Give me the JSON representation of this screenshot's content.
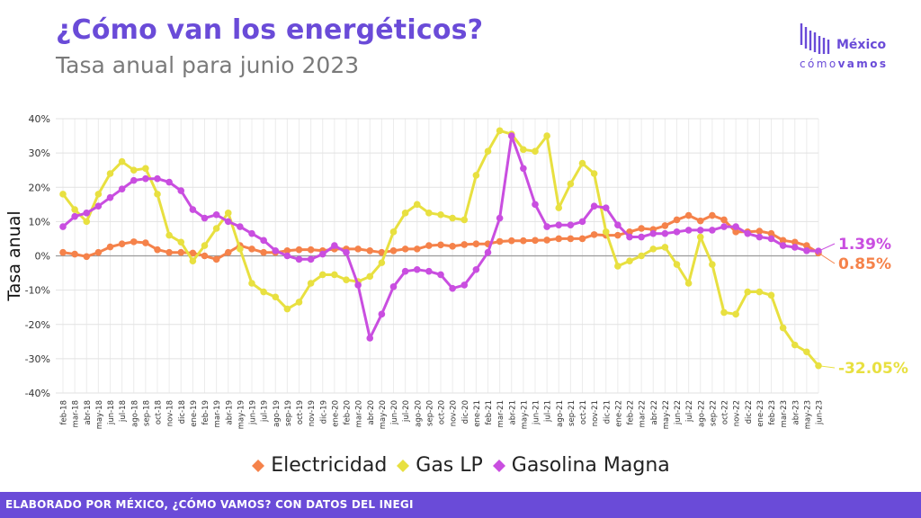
{
  "title": "¿Cómo van los energéticos?",
  "subtitle": "Tasa anual para junio 2023",
  "logo": {
    "line1": "México",
    "line2a": "cómo",
    "line2b": "vamos"
  },
  "footer": "ELABORADO POR MÉXICO, ¿CÓMO VAMOS? CON DATOS DEL INEGI",
  "colors": {
    "Electricidad": "#f5824a",
    "Gas LP": "#e8e040",
    "Gasolina Magna": "#c94ee0",
    "accent": "#6a4bd8"
  },
  "chart_data": {
    "type": "line",
    "ylabel": "Tasa anual",
    "ylim": [
      -40,
      40
    ],
    "yticks": [
      "40%",
      "30%",
      "20%",
      "10%",
      "0%",
      "-10%",
      "-20%",
      "-30%",
      "-40%"
    ],
    "grid": true,
    "legend_position": "bottom",
    "categories": [
      "feb-18",
      "mar-18",
      "abr-18",
      "may-18",
      "jun-18",
      "jul-18",
      "ago-18",
      "sep-18",
      "oct-18",
      "nov-18",
      "dic-18",
      "ene-19",
      "feb-19",
      "mar-19",
      "abr-19",
      "may-19",
      "jun-19",
      "jul-19",
      "ago-19",
      "sep-19",
      "oct-19",
      "nov-19",
      "dic-19",
      "ene-20",
      "feb-20",
      "mar-20",
      "abr-20",
      "may-20",
      "jun-20",
      "jul-20",
      "ago-20",
      "sep-20",
      "oct-20",
      "nov-20",
      "dic-20",
      "ene-21",
      "feb-21",
      "mar-21",
      "abr-21",
      "may-21",
      "jun-21",
      "jul-21",
      "ago-21",
      "sep-21",
      "oct-21",
      "nov-21",
      "dic-21",
      "ene-22",
      "feb-22",
      "mar-22",
      "abr-22",
      "may-22",
      "jun-22",
      "jul-22",
      "ago-22",
      "sep-22",
      "oct-22",
      "nov-22",
      "dic-22",
      "ene-23",
      "feb-23",
      "mar-23",
      "abr-23",
      "may-23",
      "jun-23"
    ],
    "series": [
      {
        "name": "Electricidad",
        "values": [
          1.0,
          0.5,
          -0.2,
          1.0,
          2.6,
          3.5,
          4.1,
          3.8,
          1.8,
          1.0,
          1.0,
          0.8,
          0,
          -1,
          1,
          3,
          2,
          1,
          1,
          1.5,
          1.8,
          1.8,
          1.5,
          2,
          2,
          2,
          1.5,
          1,
          1.5,
          2,
          2,
          3,
          3.2,
          2.8,
          3.3,
          3.5,
          3.5,
          4.2,
          4.4,
          4.4,
          4.5,
          4.6,
          5,
          5,
          5,
          6.2,
          6,
          6,
          7,
          8,
          7.7,
          8.8,
          10.5,
          11.8,
          10.2,
          11.8,
          10.5,
          7,
          7,
          7.2,
          6.5,
          4.5,
          4,
          3,
          0.85
        ]
      },
      {
        "name": "Gas LP",
        "values": [
          18,
          13.5,
          10,
          18,
          24,
          27.5,
          25,
          25.5,
          18,
          6,
          4,
          -1.5,
          3,
          8,
          12.5,
          2,
          -8,
          -10.5,
          -12,
          -15.5,
          -13.5,
          -8,
          -5.5,
          -5.5,
          -7,
          -7.5,
          -6,
          -2,
          7,
          12.5,
          15,
          12.5,
          12,
          11,
          10.5,
          23.5,
          30.5,
          36.5,
          35.5,
          31,
          30.5,
          35,
          14,
          21,
          27,
          24,
          7,
          -3,
          -1.5,
          0,
          2,
          2.5,
          -2.5,
          -8,
          5.5,
          -2.5,
          -16.5,
          -17,
          -10.5,
          -10.5,
          -11.5,
          -21,
          -26,
          -28,
          -32.05
        ]
      },
      {
        "name": "Gasolina Magna",
        "values": [
          8.5,
          11.5,
          12.5,
          14.5,
          17,
          19.5,
          22,
          22.5,
          22.5,
          21.5,
          19,
          13.5,
          11,
          12,
          10,
          8.5,
          6.5,
          4.5,
          1.5,
          0,
          -1,
          -1,
          0.5,
          3,
          1,
          -8.5,
          -24,
          -17,
          -9,
          -4.5,
          -4,
          -4.5,
          -5.5,
          -9.5,
          -8.5,
          -4,
          1,
          11,
          35,
          25.5,
          15,
          8.5,
          9,
          9,
          10,
          14.5,
          14,
          9,
          5.5,
          5.5,
          6.5,
          6.5,
          7,
          7.5,
          7.5,
          7.5,
          8.5,
          8.5,
          6.5,
          5.5,
          5,
          3,
          2.5,
          1.5,
          1.39
        ]
      }
    ],
    "end_labels": [
      {
        "series": "Gasolina Magna",
        "text": "1.39%"
      },
      {
        "series": "Electricidad",
        "text": "0.85%"
      },
      {
        "series": "Gas LP",
        "text": "-32.05%"
      }
    ]
  }
}
